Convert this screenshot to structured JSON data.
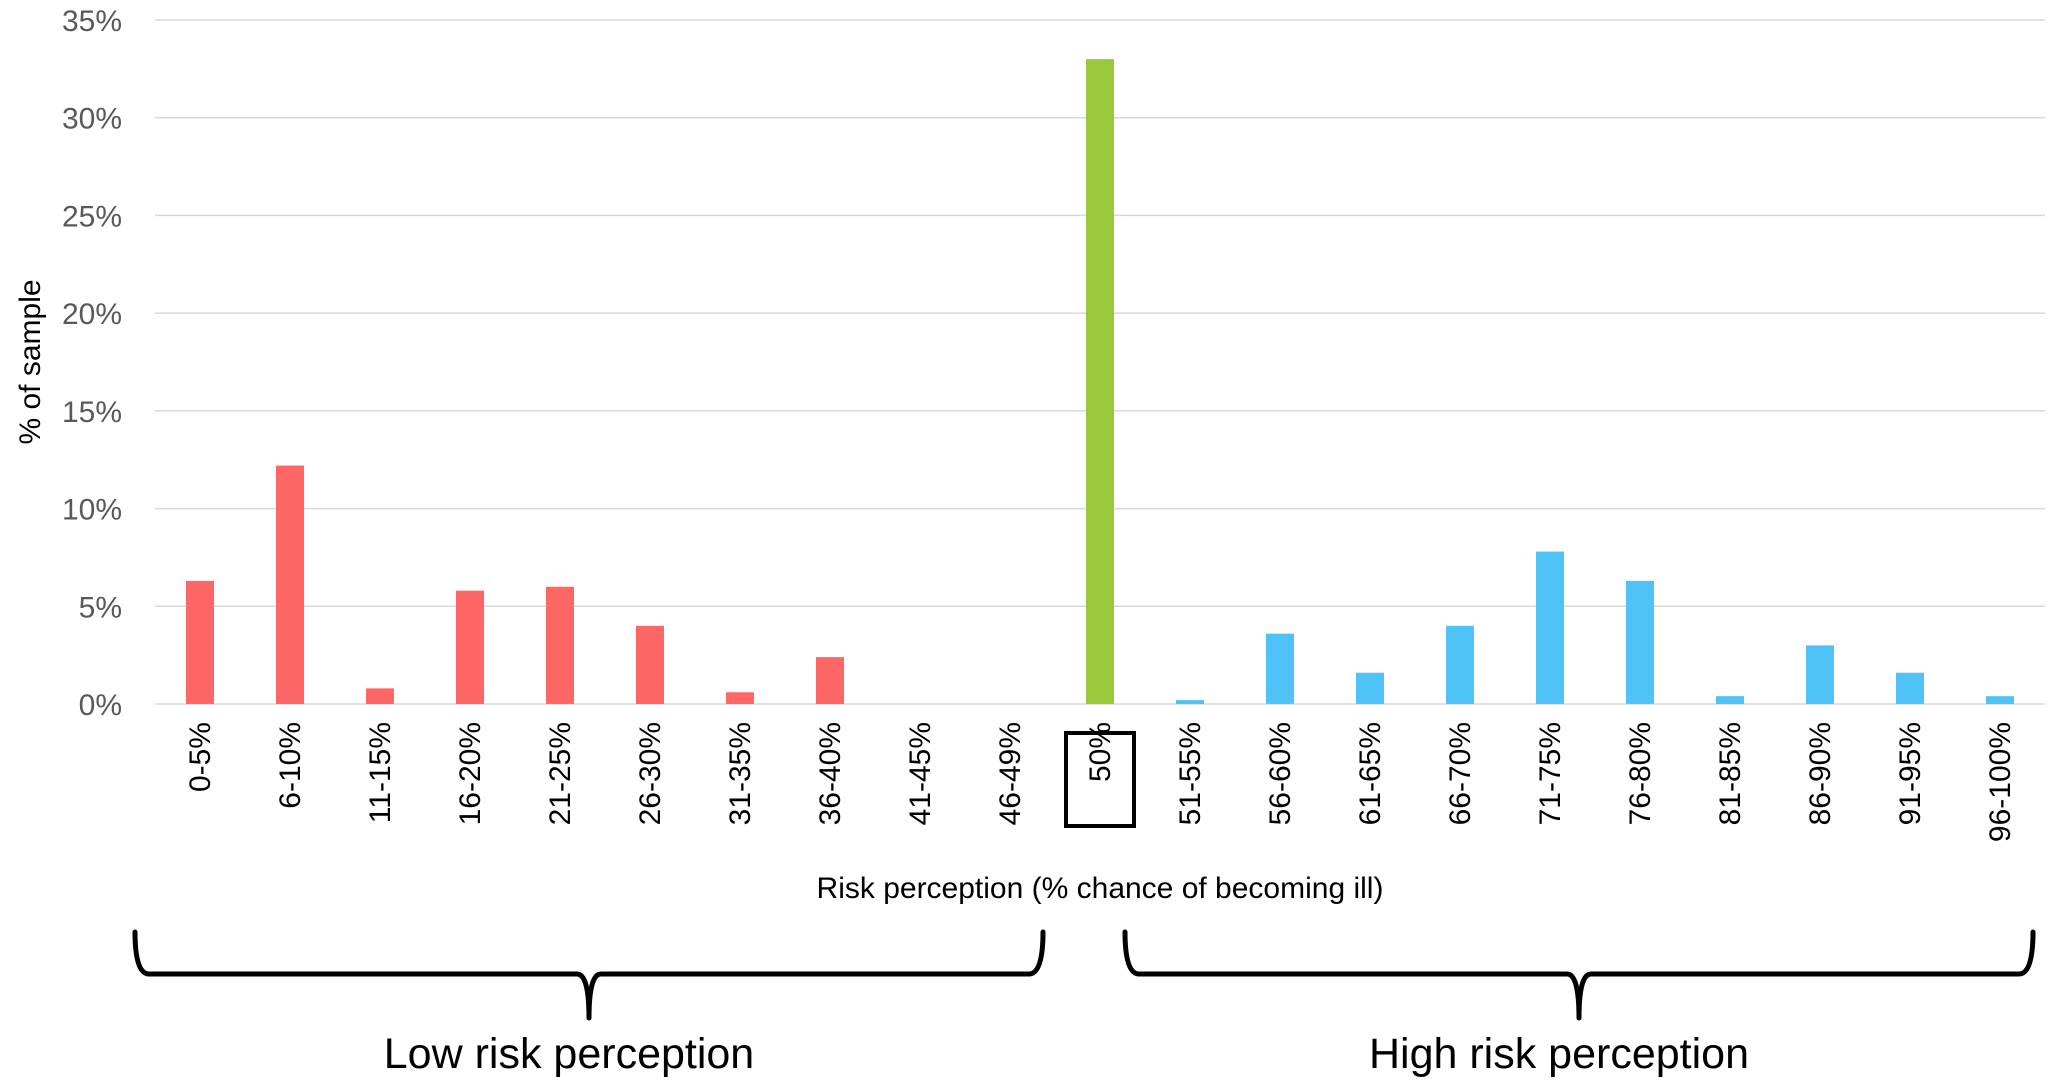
{
  "chart_data": {
    "type": "bar",
    "title": "",
    "xlabel": "Risk perception (% chance of becoming ill)",
    "ylabel": "% of sample",
    "ylim": [
      0,
      35
    ],
    "yticks": [
      0,
      5,
      10,
      15,
      20,
      25,
      30,
      35
    ],
    "ytick_suffix": "%",
    "grid": true,
    "categories": [
      "0-5%",
      "6-10%",
      "11-15%",
      "16-20%",
      "21-25%",
      "26-30%",
      "31-35%",
      "36-40%",
      "41-45%",
      "46-49%",
      "50%",
      "51-55%",
      "56-60%",
      "61-65%",
      "66-70%",
      "71-75%",
      "76-80%",
      "81-85%",
      "86-90%",
      "91-95%",
      "96-100%"
    ],
    "values": [
      6.3,
      12.2,
      0.8,
      5.8,
      6.0,
      4.0,
      0.6,
      2.4,
      0,
      0,
      33.0,
      0.2,
      3.6,
      1.6,
      4.0,
      7.8,
      6.3,
      0.4,
      3.0,
      1.6,
      0.4
    ],
    "highlighted_category": "50%",
    "colors": {
      "low": "#ff6666",
      "mid": "#99c93a",
      "high": "#4fc3f7"
    },
    "groups": [
      {
        "label": "Low risk perception",
        "from": "0-5%",
        "to": "46-49%",
        "color": "low"
      },
      {
        "label": "",
        "from": "50%",
        "to": "50%",
        "color": "mid"
      },
      {
        "label": "High risk perception",
        "from": "51-55%",
        "to": "96-100%",
        "color": "high"
      }
    ]
  }
}
